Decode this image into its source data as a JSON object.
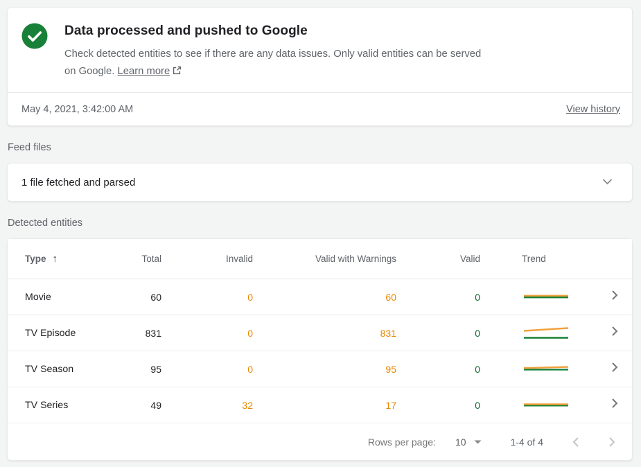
{
  "colors": {
    "check_green": "#188038",
    "valid_green": "#0d652d",
    "warning_orange": "#ea8600",
    "trend_orange": "#f2a13c",
    "trend_green": "#188038"
  },
  "status_card": {
    "title": "Data processed and pushed to Google",
    "description": "Check detected entities to see if there are any data issues. Only valid entities can be served on Google.",
    "learn_more": "Learn more",
    "timestamp": "May 4, 2021, 3:42:00 AM",
    "view_history": "View history"
  },
  "feed_files": {
    "label": "Feed files",
    "summary": "1 file fetched and parsed"
  },
  "detected_entities": {
    "label": "Detected entities",
    "columns": [
      "Type",
      "Total",
      "Invalid",
      "Valid with Warnings",
      "Valid",
      "Trend"
    ],
    "rows": [
      {
        "type": "Movie",
        "total": "60",
        "invalid": "0",
        "warnings": "60",
        "valid": "0",
        "trend": {
          "orange": [
            9.8,
            9.8
          ],
          "green": [
            12.2,
            12.2
          ]
        }
      },
      {
        "type": "TV Episode",
        "total": "831",
        "invalid": "0",
        "warnings": "831",
        "valid": "0",
        "trend": {
          "orange": [
            8.5,
            4.5
          ],
          "green": [
            18.5,
            18.5
          ]
        }
      },
      {
        "type": "TV Season",
        "total": "95",
        "invalid": "0",
        "warnings": "95",
        "valid": "0",
        "trend": {
          "orange": [
            10.2,
            8.6
          ],
          "green": [
            12.4,
            12.4
          ]
        }
      },
      {
        "type": "TV Series",
        "total": "49",
        "invalid": "32",
        "warnings": "17",
        "valid": "0",
        "trend": {
          "orange": [
            10.4,
            10.4
          ],
          "green": [
            12.3,
            12.3
          ]
        }
      }
    ],
    "pagination": {
      "rows_per_page_label": "Rows per page:",
      "rows_per_page_value": "10",
      "range": "1-4 of 4"
    }
  }
}
